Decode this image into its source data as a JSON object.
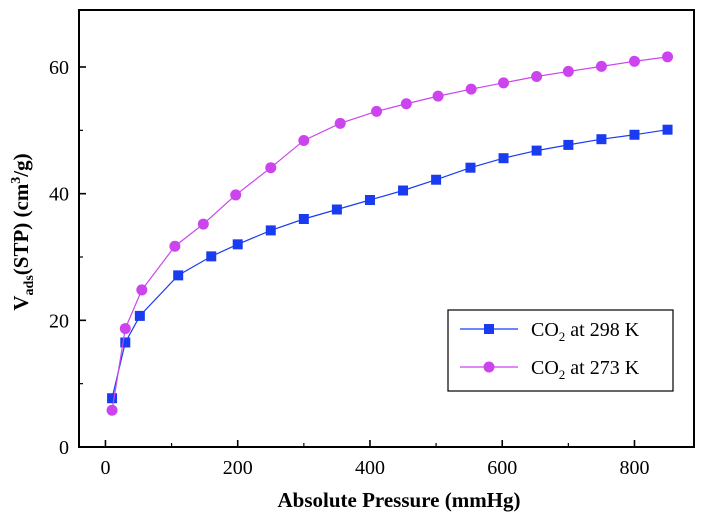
{
  "chart_data": {
    "type": "line",
    "title": "",
    "xlabel": "Absolute Pressure (mmHg)",
    "ylabel": {
      "base": "V",
      "sub": "ads",
      "mid": "(STP) (cm",
      "sup": "3",
      "end": "/g)"
    },
    "xlim": [
      -40,
      890
    ],
    "ylim": [
      0,
      69
    ],
    "xticks": [
      0,
      200,
      400,
      600,
      800
    ],
    "yticks": [
      0,
      20,
      40,
      60
    ],
    "grid": false,
    "legend_position": "bottom-right",
    "series": [
      {
        "name": "CO2 at 298 K",
        "legend": {
          "base": "CO",
          "sub": "2",
          "rest": " at 298 K"
        },
        "color": "#1a3cf0",
        "marker": "square",
        "x": [
          10,
          30,
          52,
          110,
          160,
          200,
          250,
          300,
          350,
          400,
          450,
          500,
          552,
          602,
          652,
          700,
          750,
          800,
          850
        ],
        "y": [
          7.7,
          16.5,
          20.7,
          27.1,
          30.1,
          32.0,
          34.2,
          36.0,
          37.5,
          39.0,
          40.5,
          42.2,
          44.1,
          45.6,
          46.8,
          47.7,
          48.6,
          49.3,
          50.1
        ]
      },
      {
        "name": "CO2 at 273 K",
        "legend": {
          "base": "CO",
          "sub": "2",
          "rest": " at 273 K"
        },
        "color": "#cc44ee",
        "marker": "circle",
        "x": [
          10,
          30,
          55,
          105,
          148,
          197,
          250,
          300,
          355,
          410,
          455,
          503,
          553,
          602,
          652,
          700,
          750,
          800,
          850
        ],
        "y": [
          5.8,
          18.7,
          24.8,
          31.7,
          35.2,
          39.8,
          44.1,
          48.4,
          51.1,
          53.0,
          54.2,
          55.4,
          56.5,
          57.5,
          58.5,
          59.3,
          60.1,
          60.9,
          61.6
        ]
      }
    ]
  }
}
